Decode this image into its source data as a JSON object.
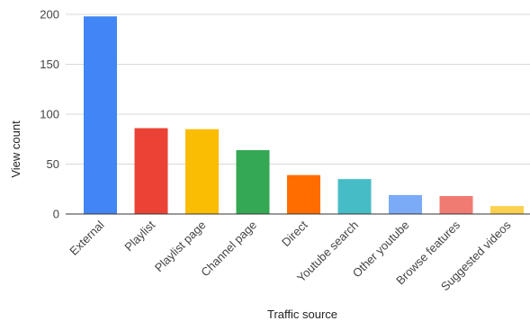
{
  "chart_data": {
    "type": "bar",
    "title": "",
    "xlabel": "Traffic source",
    "ylabel": "View count",
    "categories": [
      "External",
      "Playlist",
      "Playlist page",
      "Channel page",
      "Direct",
      "Youtube search",
      "Other youtube",
      "Browse features",
      "Suggested videos"
    ],
    "values": [
      198,
      86,
      85,
      64,
      39,
      35,
      19,
      18,
      8
    ],
    "colors": [
      "#4285f4",
      "#ea4335",
      "#fbbc04",
      "#34a853",
      "#ff6d01",
      "#46bdc6",
      "#7baaf7",
      "#f07b72",
      "#fcd04f"
    ],
    "ylim": [
      0,
      200
    ],
    "yticks": [
      "0",
      "50",
      "100",
      "150",
      "200"
    ],
    "grid": true,
    "legend": "none"
  }
}
